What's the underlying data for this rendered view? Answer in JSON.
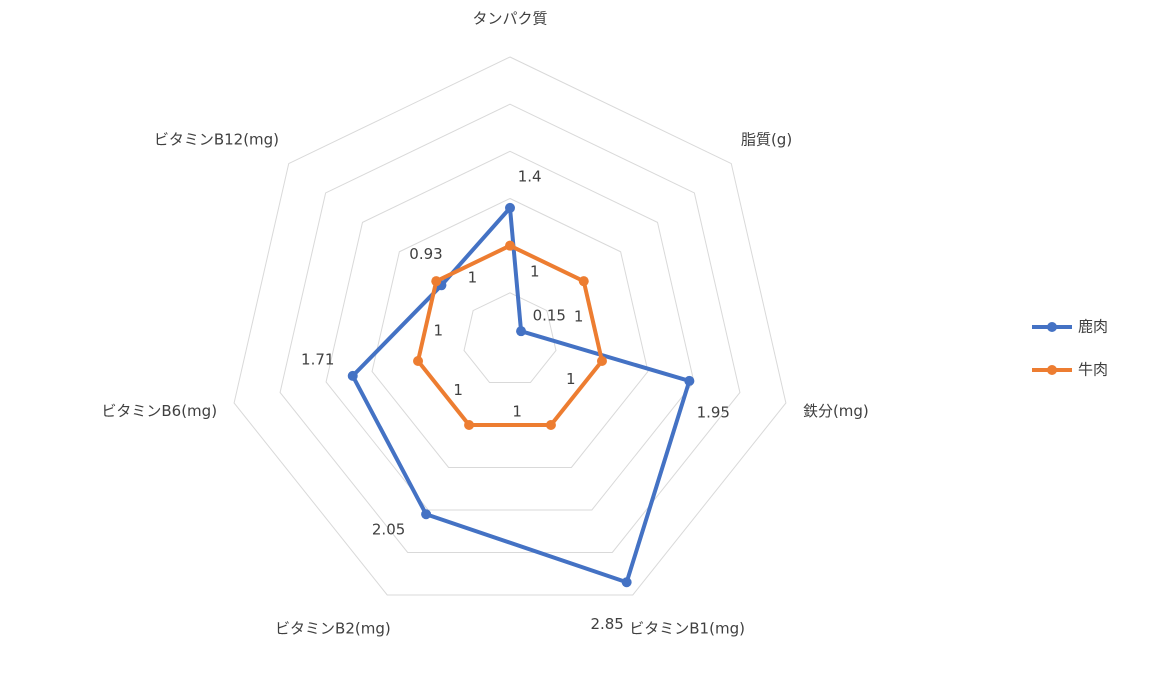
{
  "chart_data": {
    "type": "radar",
    "categories": [
      "タンパク質",
      "脂質(g)",
      "鉄分(mg)",
      "ビタミンB1(mg)",
      "ビタミンB2(mg)",
      "ビタミンB6(mg)",
      "ビタミンB12(mg)"
    ],
    "series": [
      {
        "name": "鹿肉",
        "color": "#4472c4",
        "values": [
          1.4,
          0.15,
          1.95,
          2.85,
          2.05,
          1.71,
          0.93
        ]
      },
      {
        "name": "牛肉",
        "color": "#ed7d31",
        "values": [
          1,
          1,
          1,
          1,
          1,
          1,
          1
        ]
      }
    ],
    "ylim": [
      0,
      3
    ],
    "yticks": [
      0,
      0.5,
      1,
      1.5,
      2,
      2.5,
      3
    ],
    "grid": true,
    "legend": "right"
  }
}
